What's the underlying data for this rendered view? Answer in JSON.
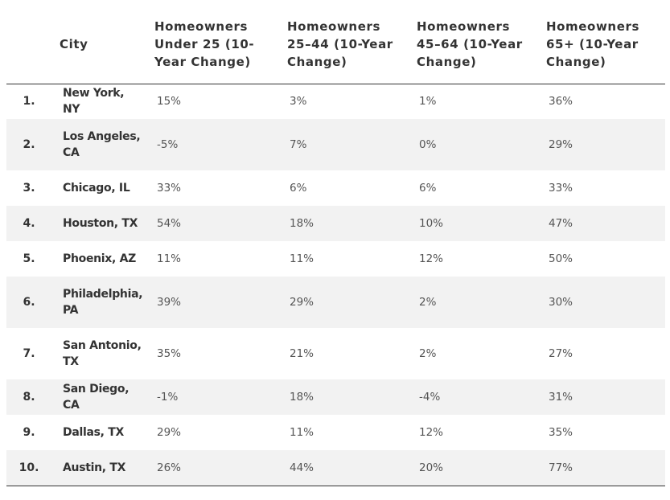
{
  "table": {
    "headers": {
      "rank": "",
      "city": "City",
      "under25": "Homeowners Under 25 (10-Year Change)",
      "age25_44": "Homeowners 25–44 (10-Year Change)",
      "age45_64": "Homeowners 45–64 (10-Year Change)",
      "age65plus": "Homeowners 65+ (10-Year Change)"
    },
    "rows": [
      {
        "rank": "1.",
        "city": "New York, NY",
        "under25": "15%",
        "age25_44": "3%",
        "age45_64": "1%",
        "age65plus": "36%"
      },
      {
        "rank": "2.",
        "city": "Los Angeles, CA",
        "under25": "-5%",
        "age25_44": "7%",
        "age45_64": "0%",
        "age65plus": "29%"
      },
      {
        "rank": "3.",
        "city": "Chicago, IL",
        "under25": "33%",
        "age25_44": "6%",
        "age45_64": "6%",
        "age65plus": "33%"
      },
      {
        "rank": "4.",
        "city": "Houston, TX",
        "under25": "54%",
        "age25_44": "18%",
        "age45_64": "10%",
        "age65plus": "47%"
      },
      {
        "rank": "5.",
        "city": "Phoenix, AZ",
        "under25": "11%",
        "age25_44": "11%",
        "age45_64": "12%",
        "age65plus": "50%"
      },
      {
        "rank": "6.",
        "city": "Philadelphia, PA",
        "under25": "39%",
        "age25_44": "29%",
        "age45_64": "2%",
        "age65plus": "30%"
      },
      {
        "rank": "7.",
        "city": "San Antonio, TX",
        "under25": "35%",
        "age25_44": "21%",
        "age45_64": "2%",
        "age65plus": "27%"
      },
      {
        "rank": "8.",
        "city": "San Diego, CA",
        "under25": "-1%",
        "age25_44": "18%",
        "age45_64": "-4%",
        "age65plus": "31%"
      },
      {
        "rank": "9.",
        "city": "Dallas, TX",
        "under25": "29%",
        "age25_44": "11%",
        "age45_64": "12%",
        "age65plus": "35%"
      },
      {
        "rank": "10.",
        "city": "Austin, TX",
        "under25": "26%",
        "age25_44": "44%",
        "age45_64": "20%",
        "age65plus": "77%"
      }
    ]
  },
  "colors": {
    "text": "#333333",
    "stripe": "#f2f2f2",
    "rule": "#333333"
  }
}
